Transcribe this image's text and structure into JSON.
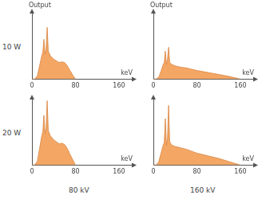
{
  "row_labels": [
    "10 W",
    "20 W"
  ],
  "column_labels": [
    "80 kV",
    "160 kV"
  ],
  "chart_data": [
    {
      "type": "area",
      "ylabel": "Output",
      "xlabel": "keV",
      "color": "#f4a765",
      "grid": false,
      "tick_labels": "x",
      "xlim": [
        0,
        185
      ],
      "xticks": [
        0,
        80,
        160
      ],
      "ylim": [
        0,
        100
      ],
      "x": [
        0,
        5,
        10,
        14,
        18,
        20,
        22,
        24,
        26,
        28,
        30,
        34,
        40,
        50,
        55,
        60,
        65,
        70,
        75,
        80
      ],
      "values": [
        0,
        0,
        5,
        20,
        35,
        40,
        60,
        38,
        45,
        78,
        42,
        35,
        30,
        25,
        26,
        25,
        20,
        13,
        6,
        0
      ]
    },
    {
      "type": "area",
      "ylabel": "Output",
      "xlabel": "keV",
      "color": "#f4a765",
      "grid": false,
      "tick_labels": "x",
      "xlim": [
        0,
        185
      ],
      "xticks": [
        0,
        80,
        160
      ],
      "ylim": [
        0,
        100
      ],
      "x": [
        0,
        5,
        10,
        14,
        18,
        20,
        22,
        24,
        26,
        28,
        30,
        34,
        40,
        50,
        60,
        70,
        80,
        100,
        120,
        140,
        160
      ],
      "values": [
        0,
        0,
        3,
        12,
        22,
        25,
        42,
        22,
        30,
        48,
        25,
        22,
        20,
        18,
        17,
        15,
        13,
        10,
        7,
        4,
        0
      ]
    },
    {
      "type": "area",
      "xlabel": "keV",
      "color": "#f4a765",
      "grid": false,
      "tick_labels": "x",
      "xlim": [
        0,
        185
      ],
      "xticks": [
        0,
        80,
        160
      ],
      "ylim": [
        0,
        100
      ],
      "x": [
        0,
        5,
        10,
        14,
        18,
        20,
        22,
        24,
        26,
        28,
        30,
        34,
        40,
        50,
        55,
        60,
        65,
        70,
        75,
        80
      ],
      "values": [
        0,
        0,
        6,
        25,
        44,
        50,
        75,
        47,
        56,
        97,
        52,
        44,
        38,
        32,
        33,
        31,
        25,
        16,
        8,
        0
      ]
    },
    {
      "type": "area",
      "xlabel": "keV",
      "color": "#f4a765",
      "grid": false,
      "tick_labels": "x",
      "xlim": [
        0,
        185
      ],
      "xticks": [
        0,
        80,
        160
      ],
      "ylim": [
        0,
        100
      ],
      "x": [
        0,
        5,
        10,
        14,
        18,
        20,
        22,
        24,
        26,
        28,
        30,
        34,
        40,
        50,
        60,
        70,
        80,
        100,
        120,
        140,
        160
      ],
      "values": [
        0,
        0,
        5,
        18,
        30,
        34,
        70,
        30,
        40,
        90,
        35,
        30,
        28,
        26,
        24,
        21,
        18,
        14,
        10,
        5,
        0
      ]
    }
  ]
}
